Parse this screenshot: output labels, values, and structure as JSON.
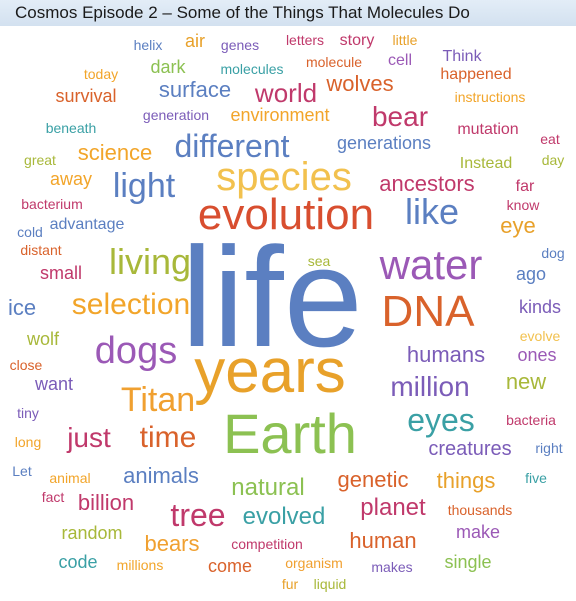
{
  "title": "Cosmos Episode 2 – Some of the Things That Molecules Do",
  "words": [
    {
      "text": "life",
      "color": "#5b7fc1"
    },
    {
      "text": "years",
      "color": "#e8a12a"
    },
    {
      "text": "Earth",
      "color": "#8cc152"
    },
    {
      "text": "evolution",
      "color": "#d84e2f"
    },
    {
      "text": "species",
      "color": "#f2c14e"
    },
    {
      "text": "water",
      "color": "#9b59b6"
    },
    {
      "text": "DNA",
      "color": "#d9622b"
    },
    {
      "text": "like",
      "color": "#5b7fc1"
    },
    {
      "text": "living",
      "color": "#a8b83a"
    },
    {
      "text": "dogs",
      "color": "#9b59b6"
    },
    {
      "text": "selection",
      "color": "#f2a52a"
    },
    {
      "text": "Titan",
      "color": "#f0a030"
    },
    {
      "text": "different",
      "color": "#5b7fc1"
    },
    {
      "text": "light",
      "color": "#5b7fc1"
    },
    {
      "text": "time",
      "color": "#d9622b"
    },
    {
      "text": "tree",
      "color": "#c0396b"
    },
    {
      "text": "eyes",
      "color": "#3aa0a5"
    },
    {
      "text": "million",
      "color": "#7b5cb8"
    },
    {
      "text": "world",
      "color": "#c0396b"
    },
    {
      "text": "bear",
      "color": "#c0396b"
    },
    {
      "text": "just",
      "color": "#c0396b"
    },
    {
      "text": "evolved",
      "color": "#3aa0a5"
    },
    {
      "text": "natural",
      "color": "#8cc152"
    },
    {
      "text": "planet",
      "color": "#c0396b"
    },
    {
      "text": "genetic",
      "color": "#d9622b"
    },
    {
      "text": "things",
      "color": "#e8a12a"
    },
    {
      "text": "animals",
      "color": "#5b7fc1"
    },
    {
      "text": "human",
      "color": "#d9622b"
    },
    {
      "text": "humans",
      "color": "#7b5cb8"
    },
    {
      "text": "ancestors",
      "color": "#c0396b"
    },
    {
      "text": "science",
      "color": "#f2a52a"
    },
    {
      "text": "surface",
      "color": "#5b7fc1"
    },
    {
      "text": "wolves",
      "color": "#d9622b"
    },
    {
      "text": "eye",
      "color": "#e8a12a"
    },
    {
      "text": "billion",
      "color": "#c0396b"
    },
    {
      "text": "bears",
      "color": "#f0a030"
    },
    {
      "text": "new",
      "color": "#a8b83a"
    },
    {
      "text": "ice",
      "color": "#5b7fc1"
    },
    {
      "text": "creatures",
      "color": "#7b5cb8"
    },
    {
      "text": "environment",
      "color": "#f2a52a"
    },
    {
      "text": "generations",
      "color": "#5b7fc1"
    },
    {
      "text": "ones",
      "color": "#9b59b6"
    },
    {
      "text": "kinds",
      "color": "#7b5cb8"
    },
    {
      "text": "ago",
      "color": "#5b7fc1"
    },
    {
      "text": "wolf",
      "color": "#a8b83a"
    },
    {
      "text": "small",
      "color": "#c0396b"
    },
    {
      "text": "want",
      "color": "#7b5cb8"
    },
    {
      "text": "come",
      "color": "#d9622b"
    },
    {
      "text": "make",
      "color": "#9b59b6"
    },
    {
      "text": "single",
      "color": "#8cc152"
    },
    {
      "text": "code",
      "color": "#3aa0a5"
    },
    {
      "text": "random",
      "color": "#a8b83a"
    },
    {
      "text": "dark",
      "color": "#8cc152"
    },
    {
      "text": "survival",
      "color": "#d9622b"
    },
    {
      "text": "air",
      "color": "#e8a12a"
    },
    {
      "text": "story",
      "color": "#c0396b"
    },
    {
      "text": "cell",
      "color": "#9b59b6"
    },
    {
      "text": "away",
      "color": "#f2a52a"
    },
    {
      "text": "advantage",
      "color": "#5b7fc1"
    },
    {
      "text": "Instead",
      "color": "#a8b83a"
    },
    {
      "text": "far",
      "color": "#c0396b"
    },
    {
      "text": "Think",
      "color": "#7b5cb8"
    },
    {
      "text": "mutation",
      "color": "#c0396b"
    },
    {
      "text": "happened",
      "color": "#d9622b"
    },
    {
      "text": "instructions",
      "color": "#f2a52a"
    },
    {
      "text": "generation",
      "color": "#7b5cb8"
    },
    {
      "text": "molecules",
      "color": "#3aa0a5"
    },
    {
      "text": "molecule",
      "color": "#d9622b"
    },
    {
      "text": "letters",
      "color": "#c0396b"
    },
    {
      "text": "genes",
      "color": "#7b5cb8"
    },
    {
      "text": "helix",
      "color": "#5b7fc1"
    },
    {
      "text": "little",
      "color": "#e8a12a"
    },
    {
      "text": "today",
      "color": "#f2a52a"
    },
    {
      "text": "beneath",
      "color": "#3aa0a5"
    },
    {
      "text": "great",
      "color": "#a8b83a"
    },
    {
      "text": "bacterium",
      "color": "#c0396b"
    },
    {
      "text": "cold",
      "color": "#5b7fc1"
    },
    {
      "text": "distant",
      "color": "#d9622b"
    },
    {
      "text": "close",
      "color": "#d9622b"
    },
    {
      "text": "tiny",
      "color": "#7b5cb8"
    },
    {
      "text": "long",
      "color": "#f2a52a"
    },
    {
      "text": "Let",
      "color": "#5b7fc1"
    },
    {
      "text": "fact",
      "color": "#c0396b"
    },
    {
      "text": "animal",
      "color": "#f2a52a"
    },
    {
      "text": "millions",
      "color": "#f2a52a"
    },
    {
      "text": "competition",
      "color": "#c0396b"
    },
    {
      "text": "organism",
      "color": "#f0a030"
    },
    {
      "text": "makes",
      "color": "#7b5cb8"
    },
    {
      "text": "fur",
      "color": "#e8a12a"
    },
    {
      "text": "liquid",
      "color": "#a8b83a"
    },
    {
      "text": "thousands",
      "color": "#d9622b"
    },
    {
      "text": "five",
      "color": "#3aa0a5"
    },
    {
      "text": "right",
      "color": "#5b7fc1"
    },
    {
      "text": "bacteria",
      "color": "#c0396b"
    },
    {
      "text": "evolve",
      "color": "#f2c14e"
    },
    {
      "text": "dog",
      "color": "#5b7fc1"
    },
    {
      "text": "know",
      "color": "#c0396b"
    },
    {
      "text": "day",
      "color": "#a8b83a"
    },
    {
      "text": "eat",
      "color": "#c0396b"
    },
    {
      "text": "sea",
      "color": "#a8b83a"
    }
  ]
}
